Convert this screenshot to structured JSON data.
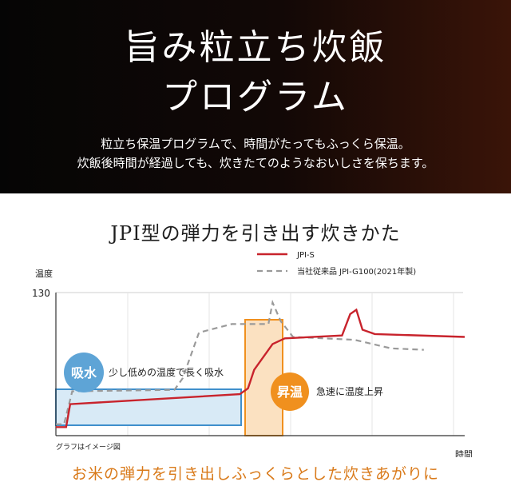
{
  "header": {
    "title_line1": "旨み粒立ち炊飯",
    "title_line2": "プログラム",
    "desc_line1": "粒立ち保温プログラムで、時間がたってもふっくら保温。",
    "desc_line2": "炊飯後時間が経過しても、炊きたてのようなおいしさを保ちます。"
  },
  "chart_title": "JPI型の弾力を引き出す炊きかた",
  "footer_text": "お米の弾力を引き出しふっくらとした炊きあがりに",
  "chart_data": {
    "type": "line",
    "xlabel": "時間",
    "ylabel": "温度",
    "y_tick": 130,
    "note": "グラフはイメージ図",
    "legend": {
      "placement": "top-right"
    },
    "series": [
      {
        "name": "JPI-S",
        "color": "#c8232c",
        "style": "solid",
        "points": [
          [
            0,
            6
          ],
          [
            2.5,
            6
          ],
          [
            3.5,
            22
          ],
          [
            45,
            29
          ],
          [
            47,
            33
          ],
          [
            48.5,
            46
          ],
          [
            53,
            64
          ],
          [
            56,
            68
          ],
          [
            70,
            70
          ],
          [
            72,
            85
          ],
          [
            73.5,
            88
          ],
          [
            75,
            74
          ],
          [
            78,
            71
          ],
          [
            100,
            69
          ]
        ]
      },
      {
        "name": "当社従来品 JPI-G100(2021年製)",
        "color": "#9a9a9a",
        "style": "dashed",
        "points": [
          [
            0,
            8
          ],
          [
            2,
            8
          ],
          [
            4,
            31
          ],
          [
            29,
            32
          ],
          [
            31,
            40
          ],
          [
            35,
            72
          ],
          [
            43,
            78
          ],
          [
            52,
            78
          ],
          [
            53,
            93
          ],
          [
            55,
            80
          ],
          [
            58,
            69
          ],
          [
            73,
            67
          ],
          [
            82,
            61
          ],
          [
            90,
            60
          ]
        ]
      }
    ],
    "annotations": [
      {
        "badge": "吸水",
        "text": "少し低めの温度で長く吸水",
        "color": "#5ea4d6"
      },
      {
        "badge": "昇温",
        "text": "急速に温度上昇",
        "color": "#f0901e"
      }
    ]
  }
}
